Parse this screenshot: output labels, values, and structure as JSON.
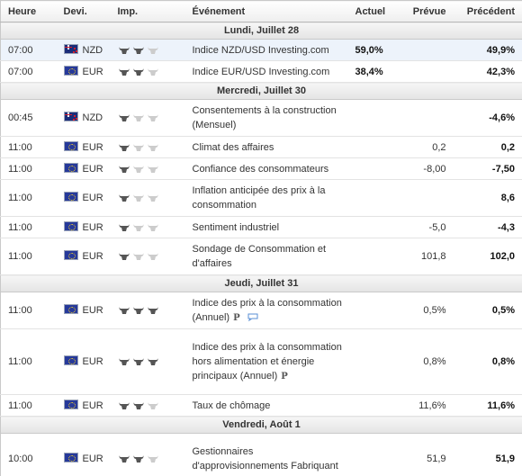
{
  "headers": {
    "time": "Heure",
    "currency": "Devi.",
    "importance": "Imp.",
    "event": "Événement",
    "actual": "Actuel",
    "forecast": "Prévue",
    "previous": "Précédent"
  },
  "colors": {
    "bull_on": "#555555",
    "bull_off": "#cccccc",
    "highlight_row": "#edf3fb",
    "chat_icon": "#5a8fd6"
  },
  "days": [
    {
      "label": "Lundi, Juillet 28",
      "events": [
        {
          "time": "07:00",
          "flag": "nz-flag-icon",
          "currency": "NZD",
          "importance": 2,
          "title": "Indice NZD/USD Investing.com",
          "actual": "59,0%",
          "forecast": "",
          "previous": "49,9%",
          "highlight": true
        },
        {
          "time": "07:00",
          "flag": "eu-flag-icon",
          "currency": "EUR",
          "importance": 2,
          "title": "Indice EUR/USD Investing.com",
          "actual": "38,4%",
          "forecast": "",
          "previous": "42,3%"
        }
      ]
    },
    {
      "label": "Mercredi, Juillet 30",
      "events": [
        {
          "time": "00:45",
          "flag": "nz-flag-icon",
          "currency": "NZD",
          "importance": 1,
          "title": "Consentements à la construction (Mensuel)",
          "actual": "",
          "forecast": "",
          "previous": "-4,6%"
        },
        {
          "time": "11:00",
          "flag": "eu-flag-icon",
          "currency": "EUR",
          "importance": 1,
          "title": "Climat des affaires",
          "actual": "",
          "forecast": "0,2",
          "previous": "0,2"
        },
        {
          "time": "11:00",
          "flag": "eu-flag-icon",
          "currency": "EUR",
          "importance": 1,
          "title": "Confiance des consommateurs",
          "actual": "",
          "forecast": "-8,00",
          "previous": "-7,50"
        },
        {
          "time": "11:00",
          "flag": "eu-flag-icon",
          "currency": "EUR",
          "importance": 1,
          "title": "Inflation anticipée des prix à la consommation",
          "actual": "",
          "forecast": "",
          "previous": "8,6"
        },
        {
          "time": "11:00",
          "flag": "eu-flag-icon",
          "currency": "EUR",
          "importance": 1,
          "title": "Sentiment industriel",
          "actual": "",
          "forecast": "-5,0",
          "previous": "-4,3"
        },
        {
          "time": "11:00",
          "flag": "eu-flag-icon",
          "currency": "EUR",
          "importance": 1,
          "title": "Sondage de Consommation et d'affaires",
          "actual": "",
          "forecast": "101,8",
          "previous": "102,0"
        }
      ]
    },
    {
      "label": "Jeudi, Juillet 31",
      "events": [
        {
          "time": "11:00",
          "flag": "eu-flag-icon",
          "currency": "EUR",
          "importance": 3,
          "title": "Indice des prix à la consommation (Annuel)",
          "prelim": "P",
          "chat": true,
          "actual": "",
          "forecast": "0,5%",
          "previous": "0,5%"
        },
        {
          "time": "11:00",
          "flag": "eu-flag-icon",
          "currency": "EUR",
          "importance": 3,
          "title": "Indice des prix à la consommation hors alimentation et énergie principaux (Annuel)",
          "prelim": "P",
          "actual": "",
          "forecast": "0,8%",
          "previous": "0,8%"
        },
        {
          "time": "11:00",
          "flag": "eu-flag-icon",
          "currency": "EUR",
          "importance": 2,
          "title": "Taux de chômage",
          "actual": "",
          "forecast": "11,6%",
          "previous": "11,6%"
        }
      ]
    },
    {
      "label": "Vendredi, Août 1",
      "events": [
        {
          "time": "10:00",
          "flag": "eu-flag-icon",
          "currency": "EUR",
          "importance": 2,
          "title": "Gestionnaires d'approvisionnements Fabriquant",
          "actual": "",
          "forecast": "51,9",
          "previous": "51,9"
        }
      ]
    }
  ]
}
